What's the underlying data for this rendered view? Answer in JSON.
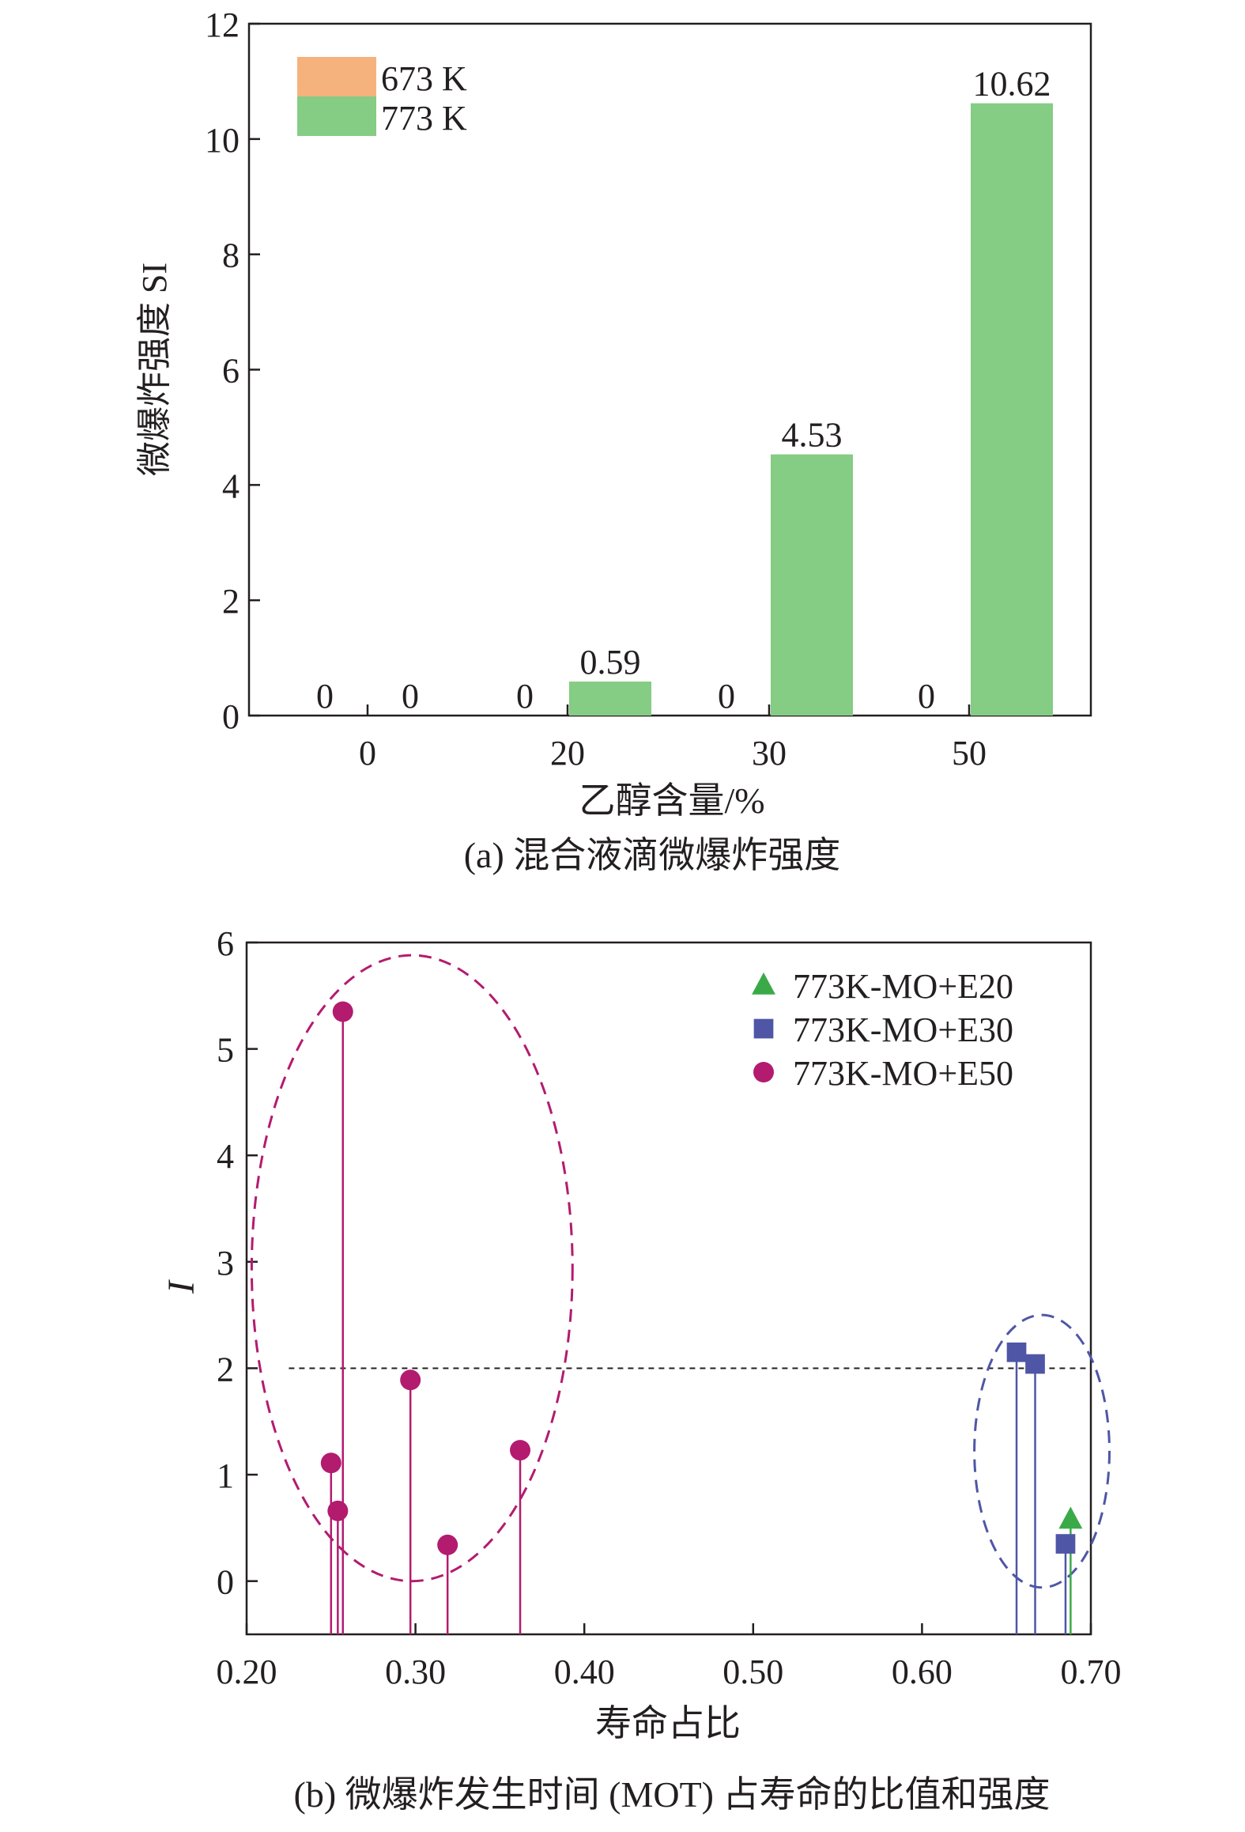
{
  "colors": {
    "c673": "#f6b27c",
    "c773": "#85cc85",
    "e20": "#3aaa48",
    "e30": "#4f56a6",
    "e50": "#b31b6f",
    "axis": "#231f20"
  },
  "chart_data": [
    {
      "type": "bar",
      "caption": "(a) 混合液滴微爆炸强度",
      "xlabel": "乙醇含量/%",
      "ylabel": "微爆炸强度 SI",
      "categories": [
        "0",
        "20",
        "30",
        "50"
      ],
      "ylim": [
        0,
        12
      ],
      "yticks": [
        "0",
        "2",
        "4",
        "6",
        "8",
        "10",
        "12"
      ],
      "legend_position": "top-left",
      "series": [
        {
          "name": "673 K",
          "values": [
            0,
            0,
            0,
            0
          ],
          "labels": [
            "0",
            "0",
            "0",
            "0"
          ]
        },
        {
          "name": "773 K",
          "values": [
            0,
            0.59,
            4.53,
            10.62
          ],
          "labels": [
            "0",
            "0.59",
            "4.53",
            "10.62"
          ]
        }
      ]
    },
    {
      "type": "scatter",
      "style": "stem",
      "caption": "(b) 微爆炸发生时间 (MOT) 占寿命的比值和强度",
      "xlabel": "寿命占比",
      "ylabel": "I",
      "xlim": [
        0.2,
        0.7
      ],
      "ylim": [
        -0.5,
        6
      ],
      "xticks": [
        "0.20",
        "0.30",
        "0.40",
        "0.50",
        "0.60",
        "0.70"
      ],
      "yticks": [
        "0",
        "1",
        "2",
        "3",
        "4",
        "5",
        "6"
      ],
      "threshold_line": {
        "y": 2,
        "x_range": [
          0.225,
          0.7
        ]
      },
      "legend_position": "top-right",
      "series": [
        {
          "name": "773K-MO+E20",
          "marker": "triangle",
          "points": [
            [
              0.688,
              0.58
            ]
          ]
        },
        {
          "name": "773K-MO+E30",
          "marker": "square",
          "points": [
            [
              0.656,
              2.15
            ],
            [
              0.667,
              2.04
            ],
            [
              0.685,
              0.35
            ]
          ]
        },
        {
          "name": "773K-MO+E50",
          "marker": "circle",
          "points": [
            [
              0.257,
              5.35
            ],
            [
              0.25,
              1.11
            ],
            [
              0.254,
              0.66
            ],
            [
              0.297,
              1.89
            ],
            [
              0.319,
              0.34
            ],
            [
              0.362,
              1.23
            ]
          ]
        }
      ],
      "cluster_ellipses": [
        {
          "color_key": "e50",
          "cx": 0.298,
          "cy": 2.94,
          "rx": 0.095,
          "ry": 2.94
        },
        {
          "color_key": "e30",
          "cx": 0.671,
          "cy": 1.22,
          "rx": 0.04,
          "ry": 1.28
        }
      ]
    }
  ]
}
